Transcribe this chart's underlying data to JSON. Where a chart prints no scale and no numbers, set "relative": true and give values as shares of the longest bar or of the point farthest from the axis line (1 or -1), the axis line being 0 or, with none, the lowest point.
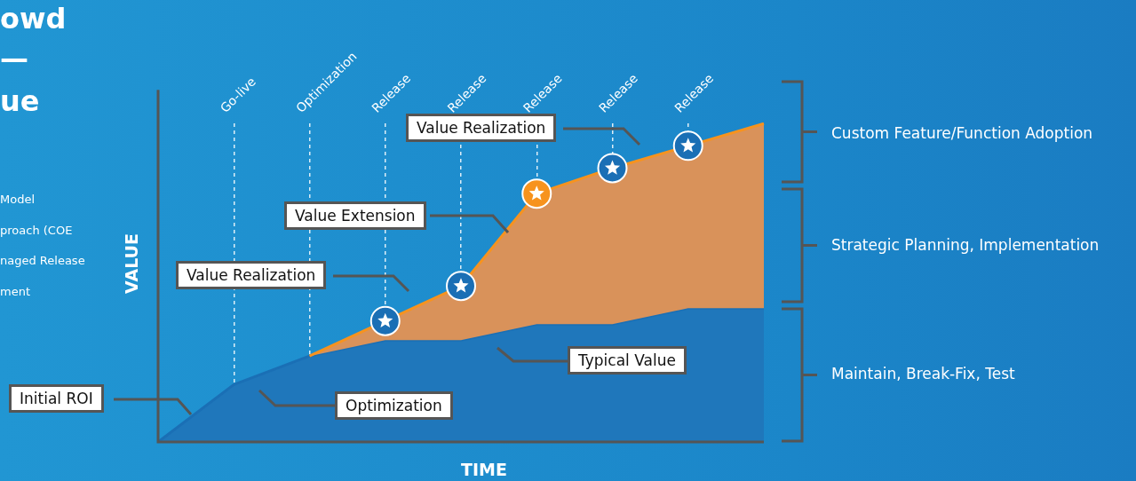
{
  "chart_data": {
    "type": "area",
    "relative": true,
    "xlabel": "TIME",
    "ylabel": "VALUE",
    "categories": [
      null,
      "Go-live",
      "Optimization",
      "Release",
      "Release",
      "Release",
      "Release",
      "Release",
      null
    ],
    "grid": "x",
    "legend": false,
    "series": [
      {
        "color": "#1f77bb",
        "values": [
          0,
          0.18,
          0.27,
          0.32,
          0.32,
          0.37,
          0.37,
          0.42,
          0.42
        ]
      },
      {
        "color": "#d9925a",
        "values": [
          null,
          null,
          0.27,
          0.38,
          0.49,
          0.78,
          0.86,
          0.93,
          1
        ]
      },
      {
        "type": "scatter",
        "marker": "circle",
        "colors": [
          null,
          null,
          null,
          "#1a6fb5",
          "#1a6fb5",
          "#f7931e",
          "#1a6fb5",
          "#1a6fb5",
          null
        ],
        "values": [
          null,
          null,
          null,
          0.38,
          0.49,
          0.78,
          0.86,
          0.93,
          null
        ]
      }
    ],
    "annotations": [
      "owd",
      "—",
      "ue",
      "Model",
      "proach (COE",
      "naged Release",
      "ment",
      "Initial ROI",
      "Optimization",
      "Value Realization",
      "Value Extension",
      "Typical Value",
      "Value Realization",
      "Custom Feature/Function Adoption",
      "Strategic Planning, Implementation",
      "Maintain, Break-Fix, Test"
    ]
  }
}
